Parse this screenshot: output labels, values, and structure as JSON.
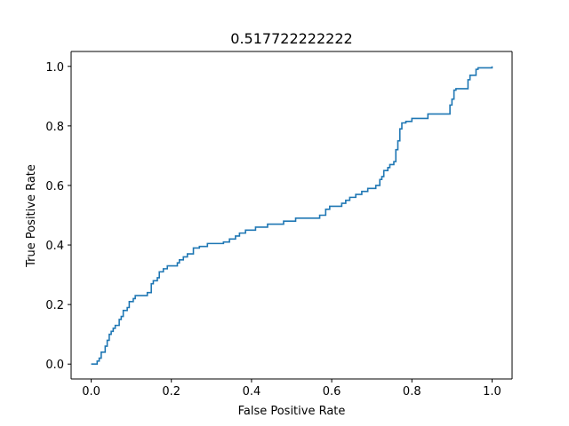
{
  "chart_data": {
    "type": "line",
    "title": "0.517722222222",
    "xlabel": "False Positive Rate",
    "ylabel": "True Positive Rate",
    "xlim": [
      -0.05,
      1.05
    ],
    "ylim": [
      -0.05,
      1.05
    ],
    "xticks": [
      0.0,
      0.2,
      0.4,
      0.6,
      0.8,
      1.0
    ],
    "yticks": [
      0.0,
      0.2,
      0.4,
      0.6,
      0.8,
      1.0
    ],
    "xtick_labels": [
      "0.0",
      "0.2",
      "0.4",
      "0.6",
      "0.8",
      "1.0"
    ],
    "ytick_labels": [
      "0.0",
      "0.2",
      "0.4",
      "0.6",
      "0.8",
      "1.0"
    ],
    "grid": false,
    "series": [
      {
        "color": "#1f77b4",
        "points": [
          [
            0.0,
            0.0
          ],
          [
            0.015,
            0.0
          ],
          [
            0.015,
            0.01
          ],
          [
            0.02,
            0.01
          ],
          [
            0.02,
            0.02
          ],
          [
            0.025,
            0.02
          ],
          [
            0.025,
            0.04
          ],
          [
            0.035,
            0.04
          ],
          [
            0.035,
            0.06
          ],
          [
            0.04,
            0.06
          ],
          [
            0.04,
            0.08
          ],
          [
            0.045,
            0.08
          ],
          [
            0.045,
            0.1
          ],
          [
            0.05,
            0.1
          ],
          [
            0.05,
            0.11
          ],
          [
            0.055,
            0.11
          ],
          [
            0.055,
            0.12
          ],
          [
            0.06,
            0.12
          ],
          [
            0.06,
            0.13
          ],
          [
            0.07,
            0.13
          ],
          [
            0.07,
            0.15
          ],
          [
            0.075,
            0.15
          ],
          [
            0.075,
            0.16
          ],
          [
            0.08,
            0.16
          ],
          [
            0.08,
            0.18
          ],
          [
            0.09,
            0.18
          ],
          [
            0.09,
            0.19
          ],
          [
            0.095,
            0.19
          ],
          [
            0.095,
            0.21
          ],
          [
            0.105,
            0.21
          ],
          [
            0.105,
            0.22
          ],
          [
            0.11,
            0.22
          ],
          [
            0.11,
            0.23
          ],
          [
            0.14,
            0.23
          ],
          [
            0.14,
            0.24
          ],
          [
            0.15,
            0.24
          ],
          [
            0.15,
            0.27
          ],
          [
            0.155,
            0.27
          ],
          [
            0.155,
            0.28
          ],
          [
            0.165,
            0.28
          ],
          [
            0.165,
            0.29
          ],
          [
            0.17,
            0.29
          ],
          [
            0.17,
            0.31
          ],
          [
            0.18,
            0.31
          ],
          [
            0.18,
            0.32
          ],
          [
            0.19,
            0.32
          ],
          [
            0.19,
            0.33
          ],
          [
            0.215,
            0.33
          ],
          [
            0.215,
            0.34
          ],
          [
            0.22,
            0.34
          ],
          [
            0.22,
            0.35
          ],
          [
            0.23,
            0.35
          ],
          [
            0.23,
            0.36
          ],
          [
            0.24,
            0.36
          ],
          [
            0.24,
            0.37
          ],
          [
            0.255,
            0.37
          ],
          [
            0.255,
            0.39
          ],
          [
            0.27,
            0.39
          ],
          [
            0.27,
            0.395
          ],
          [
            0.29,
            0.395
          ],
          [
            0.29,
            0.405
          ],
          [
            0.33,
            0.405
          ],
          [
            0.33,
            0.41
          ],
          [
            0.345,
            0.41
          ],
          [
            0.345,
            0.42
          ],
          [
            0.36,
            0.42
          ],
          [
            0.36,
            0.43
          ],
          [
            0.37,
            0.43
          ],
          [
            0.37,
            0.44
          ],
          [
            0.385,
            0.44
          ],
          [
            0.385,
            0.45
          ],
          [
            0.41,
            0.45
          ],
          [
            0.41,
            0.46
          ],
          [
            0.44,
            0.46
          ],
          [
            0.44,
            0.47
          ],
          [
            0.48,
            0.47
          ],
          [
            0.48,
            0.48
          ],
          [
            0.51,
            0.48
          ],
          [
            0.51,
            0.49
          ],
          [
            0.57,
            0.49
          ],
          [
            0.57,
            0.5
          ],
          [
            0.585,
            0.5
          ],
          [
            0.585,
            0.52
          ],
          [
            0.595,
            0.52
          ],
          [
            0.595,
            0.53
          ],
          [
            0.625,
            0.53
          ],
          [
            0.625,
            0.54
          ],
          [
            0.635,
            0.54
          ],
          [
            0.635,
            0.55
          ],
          [
            0.645,
            0.55
          ],
          [
            0.645,
            0.56
          ],
          [
            0.66,
            0.56
          ],
          [
            0.66,
            0.57
          ],
          [
            0.675,
            0.57
          ],
          [
            0.675,
            0.58
          ],
          [
            0.69,
            0.58
          ],
          [
            0.69,
            0.59
          ],
          [
            0.71,
            0.59
          ],
          [
            0.71,
            0.6
          ],
          [
            0.72,
            0.6
          ],
          [
            0.72,
            0.62
          ],
          [
            0.725,
            0.62
          ],
          [
            0.725,
            0.63
          ],
          [
            0.73,
            0.63
          ],
          [
            0.73,
            0.65
          ],
          [
            0.74,
            0.65
          ],
          [
            0.74,
            0.66
          ],
          [
            0.745,
            0.66
          ],
          [
            0.745,
            0.67
          ],
          [
            0.755,
            0.67
          ],
          [
            0.755,
            0.68
          ],
          [
            0.76,
            0.68
          ],
          [
            0.76,
            0.72
          ],
          [
            0.765,
            0.72
          ],
          [
            0.765,
            0.75
          ],
          [
            0.77,
            0.75
          ],
          [
            0.77,
            0.79
          ],
          [
            0.775,
            0.79
          ],
          [
            0.775,
            0.81
          ],
          [
            0.785,
            0.81
          ],
          [
            0.785,
            0.815
          ],
          [
            0.8,
            0.815
          ],
          [
            0.8,
            0.825
          ],
          [
            0.84,
            0.825
          ],
          [
            0.84,
            0.84
          ],
          [
            0.895,
            0.84
          ],
          [
            0.895,
            0.87
          ],
          [
            0.9,
            0.87
          ],
          [
            0.9,
            0.89
          ],
          [
            0.905,
            0.89
          ],
          [
            0.905,
            0.92
          ],
          [
            0.91,
            0.92
          ],
          [
            0.91,
            0.925
          ],
          [
            0.94,
            0.925
          ],
          [
            0.94,
            0.955
          ],
          [
            0.945,
            0.955
          ],
          [
            0.945,
            0.97
          ],
          [
            0.96,
            0.97
          ],
          [
            0.96,
            0.99
          ],
          [
            0.965,
            0.99
          ],
          [
            0.965,
            0.995
          ],
          [
            1.0,
            0.995
          ],
          [
            1.0,
            1.0
          ]
        ]
      }
    ]
  }
}
